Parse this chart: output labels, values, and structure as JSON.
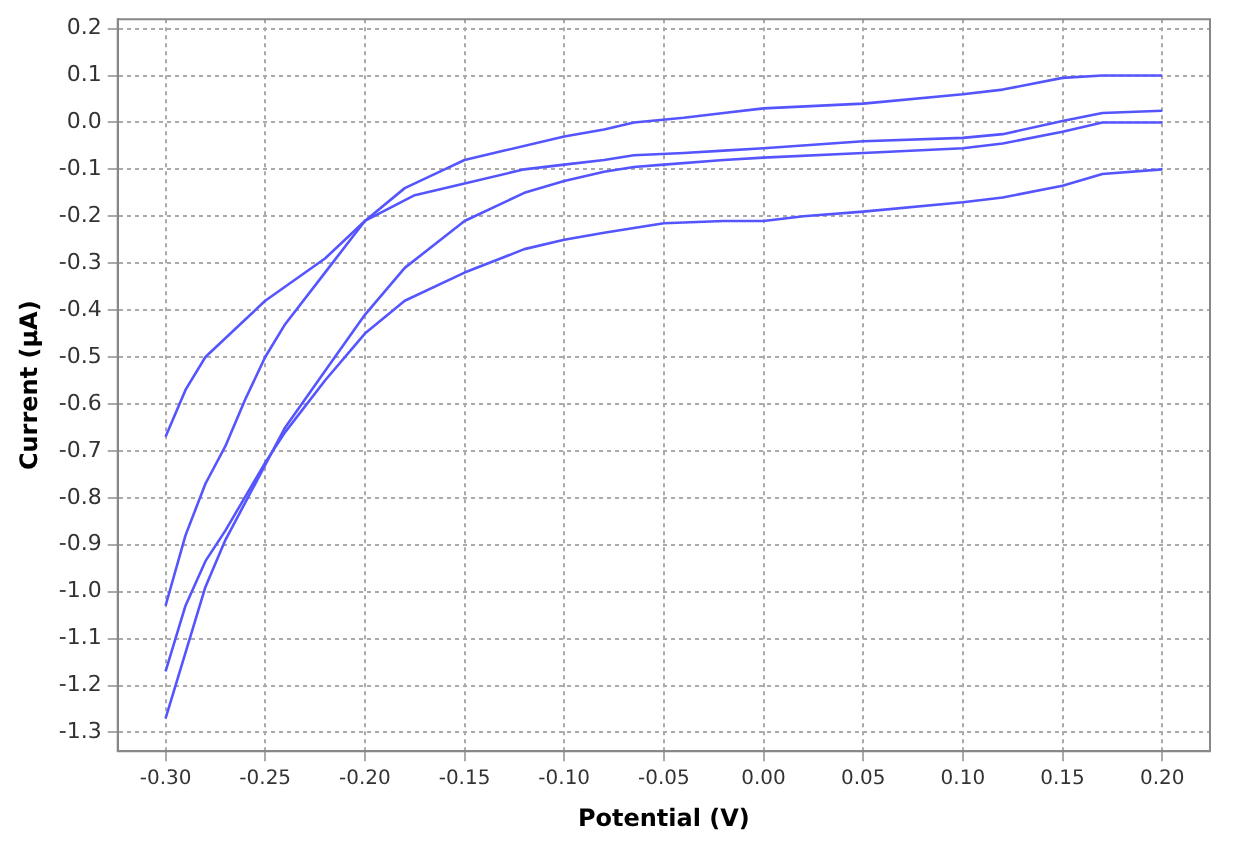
{
  "chart_data": {
    "type": "line",
    "xlabel": "Potential (V)",
    "ylabel": "Current (µA)",
    "xlim": [
      -0.324,
      0.224
    ],
    "ylim": [
      -1.34,
      0.22
    ],
    "xticks": [
      {
        "value": -0.3,
        "label": "-0.30"
      },
      {
        "value": -0.25,
        "label": "-0.25"
      },
      {
        "value": -0.2,
        "label": "-0.20"
      },
      {
        "value": -0.15,
        "label": "-0.15"
      },
      {
        "value": -0.1,
        "label": "-0.10"
      },
      {
        "value": -0.05,
        "label": "-0.05"
      },
      {
        "value": 0,
        "label": "0.00"
      },
      {
        "value": 0.05,
        "label": "0.05"
      },
      {
        "value": 0.1,
        "label": "0.10"
      },
      {
        "value": 0.15,
        "label": "0.15"
      },
      {
        "value": 0.2,
        "label": "0.20"
      }
    ],
    "yticks": [
      {
        "value": 0.2,
        "label": "0.2"
      },
      {
        "value": 0.1,
        "label": "0.1"
      },
      {
        "value": 0,
        "label": "0.0"
      },
      {
        "value": -0.1,
        "label": "-0.1"
      },
      {
        "value": -0.2,
        "label": "-0.2"
      },
      {
        "value": -0.3,
        "label": "-0.3"
      },
      {
        "value": -0.4,
        "label": "-0.4"
      },
      {
        "value": -0.5,
        "label": "-0.5"
      },
      {
        "value": -0.6,
        "label": "-0.6"
      },
      {
        "value": -0.7,
        "label": "-0.7"
      },
      {
        "value": -0.8,
        "label": "-0.8"
      },
      {
        "value": -0.9,
        "label": "-0.9"
      },
      {
        "value": -1.0,
        "label": "-1.0"
      },
      {
        "value": -1.1,
        "label": "-1.1"
      },
      {
        "value": -1.2,
        "label": "-1.2"
      },
      {
        "value": -1.3,
        "label": "-1.3"
      }
    ],
    "grid": true,
    "legend": false,
    "marker": "none",
    "line_style": "solid",
    "series": [
      {
        "color": "#5555ff",
        "x": [
          -0.3,
          -0.29,
          -0.28,
          -0.26,
          -0.25,
          -0.22,
          -0.2,
          -0.175,
          -0.15,
          -0.12,
          -0.1,
          -0.08,
          -0.065,
          -0.04,
          -0.02,
          0,
          0.05,
          0.1,
          0.12,
          0.15,
          0.17,
          0.2
        ],
        "values": [
          -0.67,
          -0.57,
          -0.5,
          -0.42,
          -0.38,
          -0.29,
          -0.21,
          -0.155,
          -0.13,
          -0.1,
          -0.09,
          -0.08,
          -0.07,
          -0.065,
          -0.06,
          -0.055,
          -0.04,
          -0.033,
          -0.025,
          0.003,
          0.02,
          0.025
        ]
      },
      {
        "color": "#5555ff",
        "x": [
          -0.3,
          -0.29,
          -0.28,
          -0.27,
          -0.26,
          -0.25,
          -0.24,
          -0.22,
          -0.2,
          -0.18,
          -0.16,
          -0.15,
          -0.13,
          -0.1,
          -0.08,
          -0.065,
          -0.04,
          -0.02,
          0,
          0.05,
          0.1,
          0.12,
          0.15,
          0.17,
          0.2
        ],
        "values": [
          -1.03,
          -0.88,
          -0.77,
          -0.69,
          -0.59,
          -0.5,
          -0.43,
          -0.32,
          -0.21,
          -0.14,
          -0.1,
          -0.08,
          -0.06,
          -0.03,
          -0.015,
          0,
          0.01,
          0.02,
          0.03,
          0.04,
          0.06,
          0.07,
          0.095,
          0.1,
          0.1
        ]
      },
      {
        "color": "#5555ff",
        "x": [
          -0.3,
          -0.295,
          -0.28,
          -0.27,
          -0.25,
          -0.24,
          -0.22,
          -0.2,
          -0.18,
          -0.15,
          -0.12,
          -0.1,
          -0.08,
          -0.065,
          -0.05,
          -0.02,
          0,
          0.05,
          0.1,
          0.12,
          0.15,
          0.17,
          0.2
        ],
        "values": [
          -1.27,
          -1.2,
          -0.99,
          -0.89,
          -0.73,
          -0.65,
          -0.53,
          -0.41,
          -0.31,
          -0.21,
          -0.15,
          -0.125,
          -0.105,
          -0.095,
          -0.09,
          -0.08,
          -0.075,
          -0.065,
          -0.055,
          -0.045,
          -0.02,
          0,
          0
        ]
      },
      {
        "color": "#5555ff",
        "x": [
          -0.3,
          -0.29,
          -0.28,
          -0.27,
          -0.25,
          -0.24,
          -0.22,
          -0.2,
          -0.18,
          -0.15,
          -0.12,
          -0.1,
          -0.08,
          -0.065,
          -0.05,
          -0.02,
          0,
          0.02,
          0.05,
          0.1,
          0.12,
          0.15,
          0.17,
          0.2
        ],
        "values": [
          -1.17,
          -1.03,
          -0.935,
          -0.87,
          -0.725,
          -0.66,
          -0.55,
          -0.45,
          -0.38,
          -0.32,
          -0.27,
          -0.25,
          -0.235,
          -0.225,
          -0.215,
          -0.21,
          -0.21,
          -0.2,
          -0.19,
          -0.17,
          -0.16,
          -0.135,
          -0.11,
          -0.1
        ]
      }
    ]
  }
}
